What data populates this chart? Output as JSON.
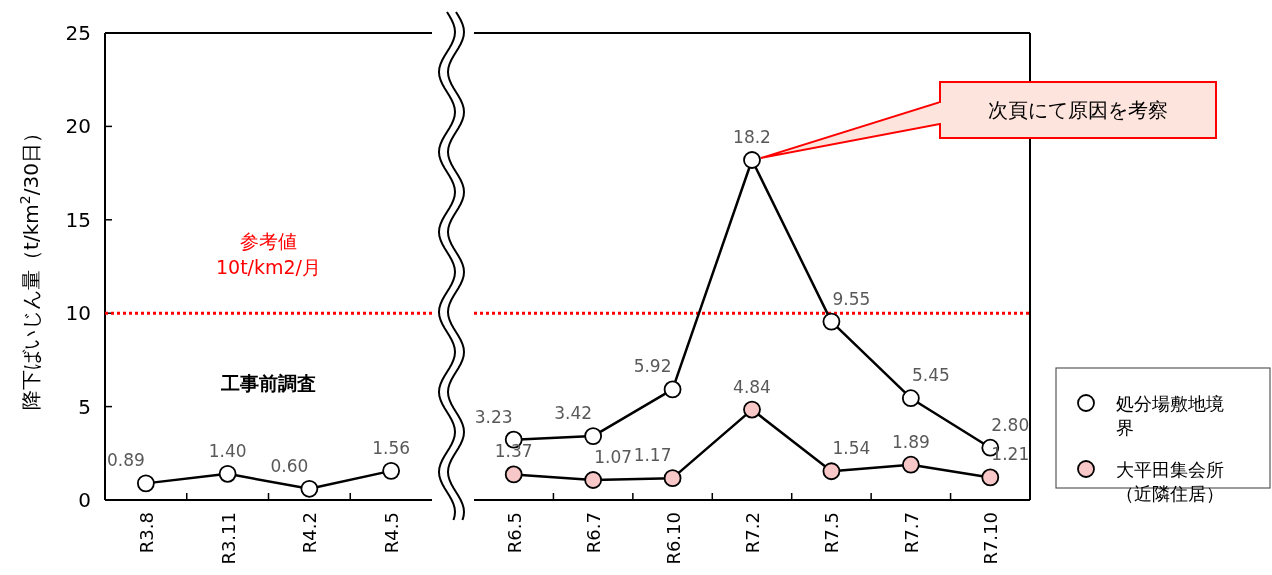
{
  "chart_data": [
    {
      "type": "line",
      "ylabel": "降下ばいじん量（t/km$^{2}$/30日）",
      "categories": [
        "R3.8",
        "R3.11",
        "R4.2",
        "R4.5"
      ],
      "series": [
        {
          "color": "#ffffff",
          "values": [
            0.89,
            1.4,
            0.6,
            1.56
          ],
          "value_labels": [
            "0.89",
            "1.40",
            "0.60",
            "1.56"
          ]
        }
      ],
      "ylim": [
        0,
        25
      ],
      "yticks": [
        0,
        5,
        10,
        15,
        20,
        25
      ],
      "ref_lines": [
        {
          "axis": "y",
          "value": 10,
          "label": "参考値\n10t/km2/月",
          "color": "#ff0000",
          "line_style": "dotted"
        }
      ],
      "annotations": [
        "工事前調査"
      ],
      "marker": "circle",
      "grid": false,
      "legend": false
    },
    {
      "type": "line",
      "categories": [
        "R6.5",
        "R6.7",
        "R6.10",
        "R7.2",
        "R7.5",
        "R7.7",
        "R7.10"
      ],
      "series": [
        {
          "name": "処分場敷地境界",
          "color": "#ffffff",
          "values": [
            3.23,
            3.42,
            5.92,
            18.2,
            9.55,
            5.45,
            2.8
          ],
          "value_labels": [
            "3.23",
            "3.42",
            "5.92",
            "18.2",
            "9.55",
            "5.45",
            "2.80"
          ]
        },
        {
          "name": "大平田集会所（近隣住居）",
          "color": "#f8c8c8",
          "values": [
            1.37,
            1.07,
            1.17,
            4.84,
            1.54,
            1.89,
            1.21
          ],
          "value_labels": [
            "1.37",
            "1.07",
            "1.17",
            "4.84",
            "1.54",
            "1.89",
            "1.21"
          ]
        }
      ],
      "ylim": [
        0,
        25
      ],
      "tick_labels": "x",
      "ref_lines": [
        {
          "axis": "y",
          "value": 10,
          "color": "#ff0000",
          "line_style": "dotted"
        }
      ],
      "annotations": [
        "次頁にて原因を考察"
      ],
      "marker": "circle",
      "grid": false,
      "legend": "right"
    }
  ]
}
